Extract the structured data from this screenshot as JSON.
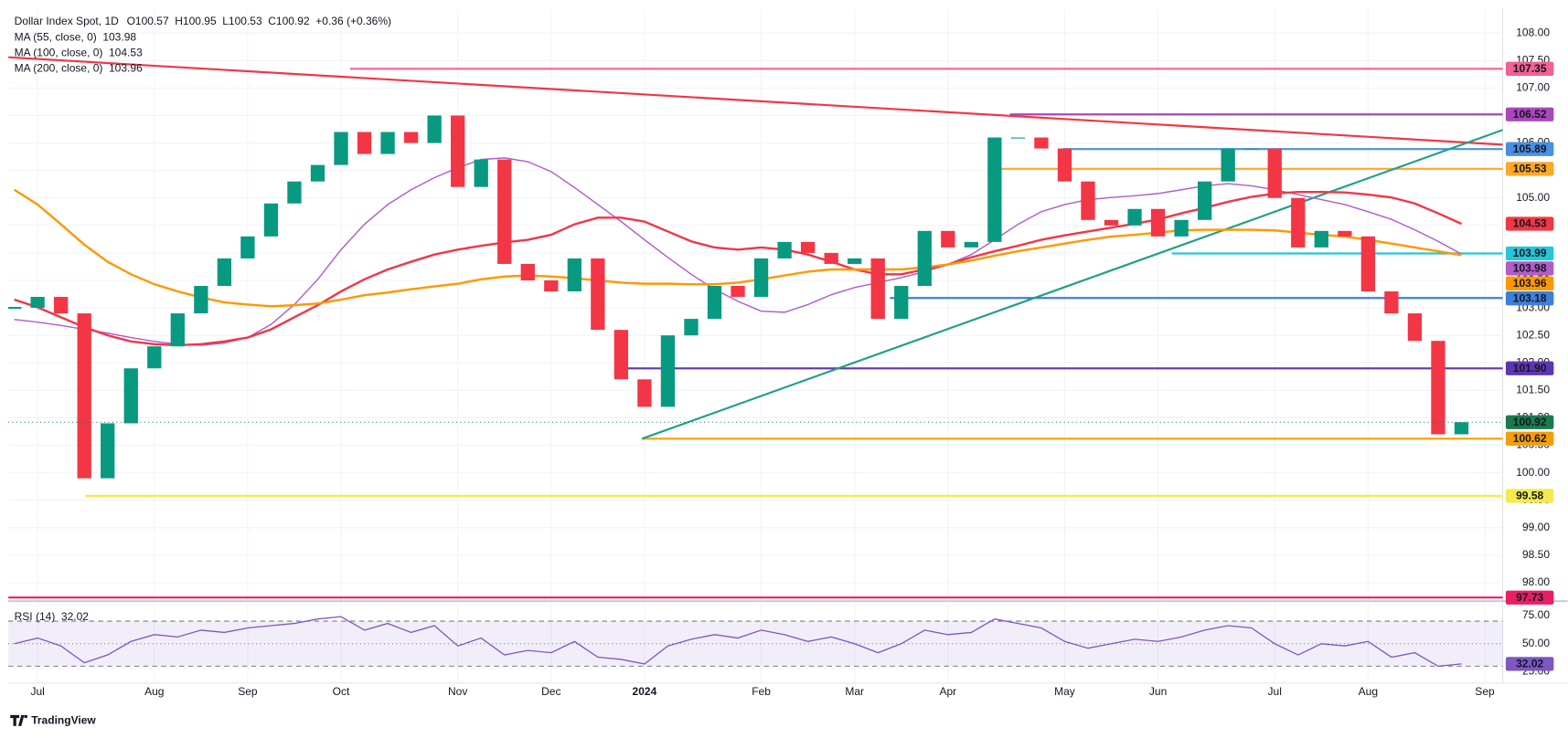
{
  "chart_data": {
    "type": "candlestick",
    "title": "Dollar Index Spot, 1D",
    "ohlc_text": [
      "O100.57",
      "H100.95",
      "L100.53",
      "C100.92",
      "+0.36 (+0.36%)"
    ],
    "categories": [
      null,
      "Jul",
      null,
      null,
      null,
      null,
      "Aug",
      null,
      null,
      null,
      "Sep",
      null,
      null,
      null,
      "Oct",
      null,
      null,
      null,
      null,
      "Nov",
      null,
      null,
      null,
      "Dec",
      null,
      null,
      null,
      "2024",
      null,
      null,
      null,
      null,
      "Feb",
      null,
      null,
      null,
      "Mar",
      null,
      null,
      null,
      "Apr",
      null,
      null,
      null,
      null,
      "May",
      null,
      null,
      null,
      "Jun",
      null,
      null,
      null,
      null,
      "Jul",
      null,
      null,
      null,
      "Aug",
      null,
      null,
      null,
      null,
      "Sep"
    ],
    "close": [
      103.0,
      103.2,
      102.9,
      99.9,
      100.9,
      101.9,
      102.3,
      102.9,
      103.4,
      103.9,
      104.3,
      104.9,
      105.3,
      105.6,
      106.2,
      105.8,
      106.2,
      106.0,
      106.5,
      105.2,
      105.7,
      103.8,
      103.5,
      103.3,
      103.9,
      102.6,
      101.7,
      101.2,
      102.5,
      102.8,
      103.4,
      103.2,
      103.9,
      104.2,
      104.0,
      103.8,
      103.9,
      102.8,
      103.4,
      104.4,
      104.1,
      104.2,
      106.1,
      106.1,
      105.9,
      105.3,
      104.6,
      104.5,
      104.8,
      104.3,
      104.6,
      105.3,
      105.9,
      105.9,
      105.0,
      104.1,
      104.4,
      104.3,
      103.3,
      102.9,
      102.4,
      100.7,
      100.92,
      null
    ],
    "up_color": "#089981",
    "down_color": "#f23645",
    "series": [
      {
        "name": "MA (55, close, 0)",
        "color": "#b05cc9",
        "values": [
          102.79,
          102.74,
          102.68,
          102.61,
          102.54,
          102.46,
          102.39,
          102.34,
          102.32,
          102.36,
          102.46,
          102.7,
          103.06,
          103.52,
          104.06,
          104.52,
          104.88,
          105.15,
          105.37,
          105.55,
          105.7,
          105.73,
          105.66,
          105.48,
          105.19,
          104.88,
          104.57,
          104.24,
          103.92,
          103.61,
          103.34,
          103.12,
          102.94,
          102.92,
          103.06,
          103.24,
          103.37,
          103.46,
          103.55,
          103.66,
          103.79,
          103.97,
          104.24,
          104.52,
          104.75,
          104.88,
          104.97,
          105.01,
          105.04,
          105.08,
          105.15,
          105.22,
          105.26,
          105.22,
          105.15,
          105.06,
          104.97,
          104.88,
          104.75,
          104.61,
          104.42,
          104.21,
          103.98,
          null
        ]
      },
      {
        "name": "MA (100, close, 0)",
        "color": "#f23645",
        "values": [
          103.15,
          103.01,
          102.83,
          102.65,
          102.5,
          102.39,
          102.34,
          102.32,
          102.34,
          102.39,
          102.46,
          102.61,
          102.83,
          103.05,
          103.3,
          103.52,
          103.7,
          103.84,
          103.97,
          104.06,
          104.13,
          104.19,
          104.24,
          104.33,
          104.52,
          104.64,
          104.64,
          104.57,
          104.39,
          104.21,
          104.1,
          104.06,
          104.1,
          104.06,
          103.97,
          103.84,
          103.7,
          103.61,
          103.61,
          103.7,
          103.79,
          103.92,
          104.03,
          104.13,
          104.24,
          104.32,
          104.39,
          104.46,
          104.53,
          104.61,
          104.72,
          104.82,
          104.93,
          105.02,
          105.08,
          105.11,
          105.11,
          105.1,
          105.06,
          105.01,
          104.9,
          104.72,
          104.53,
          null
        ]
      },
      {
        "name": "MA (200, close, 0)",
        "color": "#ff9800",
        "values": [
          105.15,
          104.88,
          104.52,
          104.15,
          103.84,
          103.61,
          103.43,
          103.3,
          103.19,
          103.1,
          103.06,
          103.03,
          103.05,
          103.08,
          103.15,
          103.23,
          103.28,
          103.34,
          103.39,
          103.44,
          103.52,
          103.57,
          103.59,
          103.57,
          103.54,
          103.5,
          103.46,
          103.44,
          103.44,
          103.43,
          103.43,
          103.46,
          103.52,
          103.59,
          103.66,
          103.7,
          103.7,
          103.7,
          103.7,
          103.74,
          103.79,
          103.86,
          103.95,
          104.03,
          104.1,
          104.17,
          104.24,
          104.3,
          104.33,
          104.37,
          104.41,
          104.42,
          104.42,
          104.42,
          104.41,
          104.37,
          104.33,
          104.3,
          104.24,
          104.17,
          104.1,
          104.03,
          103.96,
          null
        ]
      }
    ],
    "ylim": [
      97.7,
      108.42
    ],
    "yticks": [
      {
        "value": 98,
        "label": "98.00"
      },
      {
        "value": 98.5,
        "label": "98.50"
      },
      {
        "value": 99,
        "label": "99.00"
      },
      {
        "value": 99.5,
        "label": "99.50"
      },
      {
        "value": 100,
        "label": "100.00"
      },
      {
        "value": 100.5,
        "label": "100.50"
      },
      {
        "value": 101,
        "label": "101.00"
      },
      {
        "value": 101.5,
        "label": "101.50"
      },
      {
        "value": 102,
        "label": "102.00"
      },
      {
        "value": 102.5,
        "label": "102.50"
      },
      {
        "value": 103,
        "label": "103.00"
      },
      {
        "value": 103.5,
        "label": "103.50"
      },
      {
        "value": 104,
        "label": "104.00"
      },
      {
        "value": 104.5,
        "label": "104.50"
      },
      {
        "value": 105,
        "label": "105.00"
      },
      {
        "value": 105.5,
        "label": "105.50"
      },
      {
        "value": 106,
        "label": "106.00"
      },
      {
        "value": 106.5,
        "label": "106.50"
      },
      {
        "value": 107,
        "label": "107.00"
      },
      {
        "value": 107.5,
        "label": "107.50"
      },
      {
        "value": 108,
        "label": "108.00"
      }
    ],
    "grid": true,
    "levels": [
      {
        "value": 107.35,
        "color": "#f06292"
      },
      {
        "value": 106.52,
        "color": "#ab47bc"
      },
      {
        "value": 105.89,
        "color": "#4a90e2"
      },
      {
        "value": 105.53,
        "color": "#ffa726"
      },
      {
        "value": 103.99,
        "color": "#26c6da"
      },
      {
        "value": 103.18,
        "color": "#3d7fd9"
      },
      {
        "value": 101.9,
        "label": "101.90",
        "color": "#5e35b1"
      },
      {
        "value": 100.62,
        "color": "#f59e0b"
      },
      {
        "value": 99.58,
        "color": "#f5ea4d"
      },
      {
        "value": 97.73,
        "color": "#e91e63"
      }
    ],
    "trendlines": [
      {
        "color": "#f23645",
        "values": [
          107.56,
          105.97
        ]
      },
      {
        "color": "#1fa187",
        "values": [
          100.62,
          106.27
        ]
      }
    ],
    "price_color": "#1b7a4d",
    "rsi": {
      "name": "RSI (14)",
      "color": "#7e57c2",
      "values": [
        50,
        55,
        48,
        33,
        40,
        52,
        58,
        56,
        62,
        60,
        64,
        66,
        68,
        72,
        74,
        62,
        68,
        60,
        66,
        48,
        55,
        40,
        44,
        42,
        52,
        38,
        36,
        32,
        48,
        54,
        58,
        55,
        62,
        58,
        52,
        56,
        50,
        42,
        50,
        62,
        58,
        60,
        72,
        68,
        64,
        52,
        46,
        50,
        54,
        52,
        56,
        62,
        66,
        64,
        50,
        40,
        50,
        48,
        52,
        38,
        42,
        30,
        32.02,
        null
      ],
      "ylim": [
        15,
        86
      ],
      "yticks": [
        {
          "value": 25,
          "label": "25.00"
        },
        {
          "value": 50,
          "label": "50.00"
        },
        {
          "value": 75,
          "label": "75.00"
        }
      ],
      "bands": [
        70,
        50,
        30
      ]
    },
    "logo": "TradingView"
  }
}
